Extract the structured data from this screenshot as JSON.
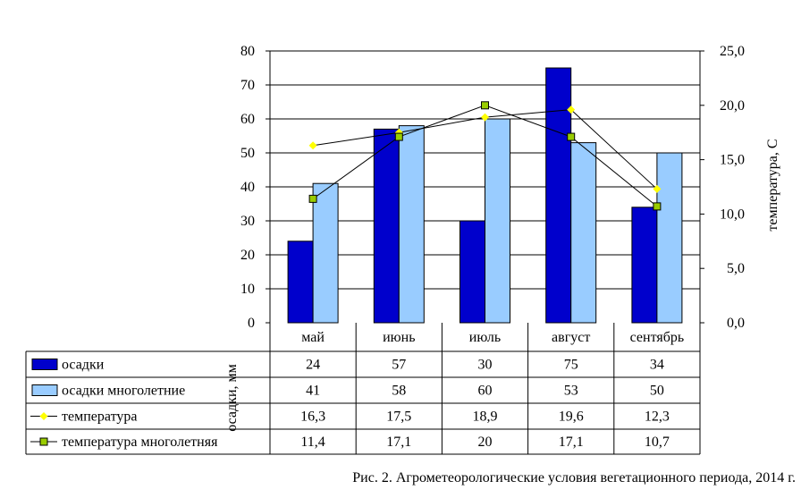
{
  "caption": "Рис. 2. Агрометеорологические условия вегетационного периода, 2014 г.",
  "chart_data": {
    "type": "bar",
    "categories": [
      "май",
      "июнь",
      "июль",
      "август",
      "сентябрь"
    ],
    "ylabel": "осадки, мм",
    "y2label": "температура, С",
    "ylim": [
      0,
      80
    ],
    "y2lim": [
      0,
      25
    ],
    "yticks": [
      "0",
      "10",
      "20",
      "30",
      "40",
      "50",
      "60",
      "70",
      "80"
    ],
    "y2ticks": [
      "0,0",
      "5,0",
      "10,0",
      "15,0",
      "20,0",
      "25,0"
    ],
    "grid": true,
    "legend": "data-table",
    "series": [
      {
        "name": "осадки",
        "kind": "bar",
        "axis": "left",
        "color": "#0000cc",
        "values": [
          24,
          57,
          30,
          75,
          34
        ],
        "labels": [
          "24",
          "57",
          "30",
          "75",
          "34"
        ]
      },
      {
        "name": "осадки многолетние",
        "kind": "bar",
        "axis": "left",
        "color": "#99ccff",
        "values": [
          41,
          58,
          60,
          53,
          50
        ],
        "labels": [
          "41",
          "58",
          "60",
          "53",
          "50"
        ]
      },
      {
        "name": "температура",
        "kind": "line",
        "axis": "right",
        "color": "#ffff00",
        "marker": "diamond",
        "values": [
          16.3,
          17.5,
          18.9,
          19.6,
          12.3
        ],
        "labels": [
          "16,3",
          "17,5",
          "18,9",
          "19,6",
          "12,3"
        ]
      },
      {
        "name": "температура многолетняя",
        "kind": "line",
        "axis": "right",
        "color": "#99cc00",
        "marker": "square",
        "values": [
          11.4,
          17.1,
          20,
          17.1,
          10.7
        ],
        "labels": [
          "11,4",
          "17,1",
          "20",
          "17,1",
          "10,7"
        ]
      }
    ]
  }
}
